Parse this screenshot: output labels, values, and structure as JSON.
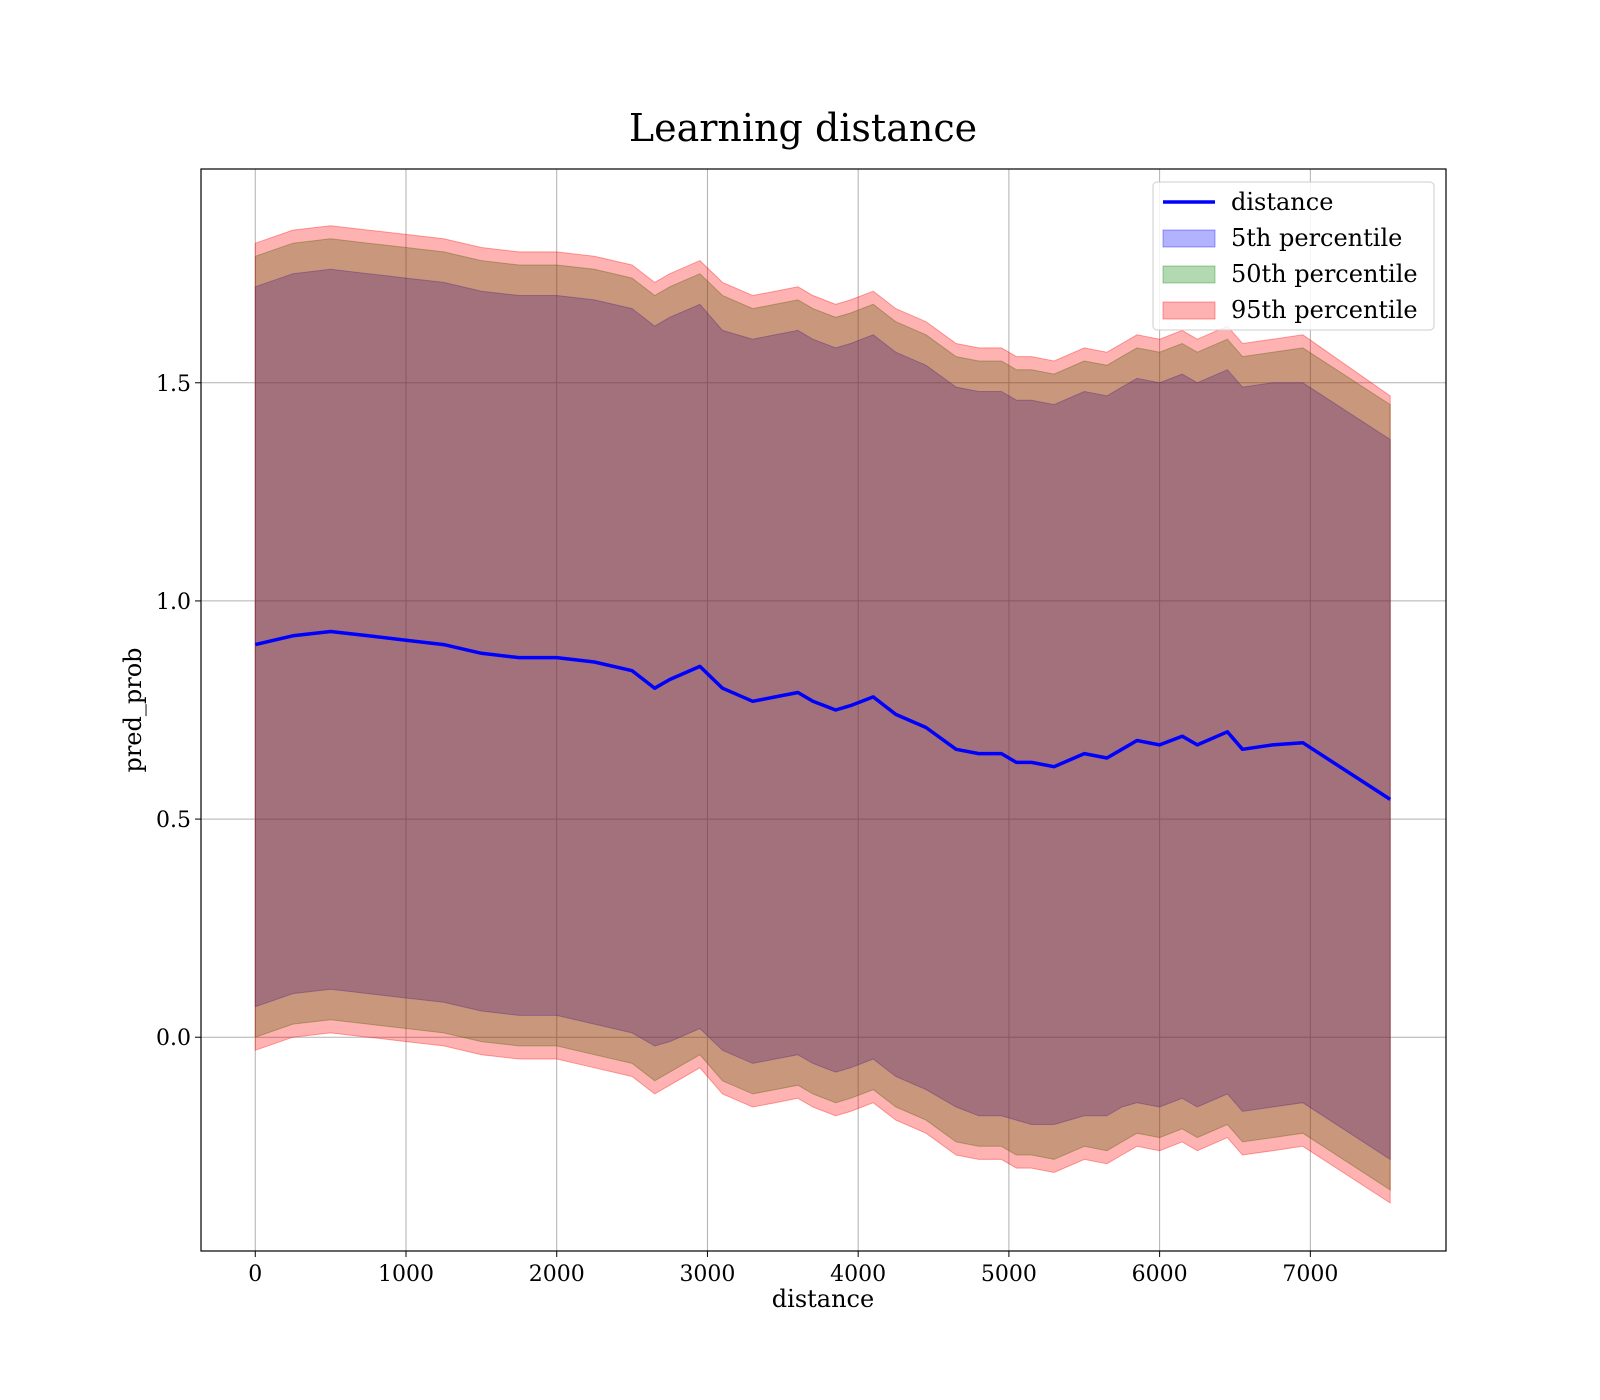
{
  "chart_data": {
    "type": "line",
    "title": "Learning distance",
    "xlabel": "distance",
    "ylabel": "pred_prob",
    "xlim": [
      -360,
      7900
    ],
    "ylim": [
      -0.49,
      1.99
    ],
    "xticks": [
      0,
      1000,
      2000,
      3000,
      4000,
      5000,
      6000,
      7000
    ],
    "yticks": [
      0.0,
      0.5,
      1.0,
      1.5
    ],
    "xtick_labels": [
      "0",
      "1000",
      "2000",
      "3000",
      "4000",
      "5000",
      "6000",
      "7000"
    ],
    "ytick_labels": [
      "0.0",
      "0.5",
      "1.0",
      "1.5"
    ],
    "grid": true,
    "legend_position": "top-right",
    "x": [
      0,
      250,
      500,
      750,
      1000,
      1250,
      1500,
      1750,
      2000,
      2250,
      2500,
      2650,
      2750,
      2950,
      3100,
      3300,
      3450,
      3600,
      3700,
      3850,
      3950,
      4100,
      4250,
      4450,
      4650,
      4800,
      4950,
      5050,
      5150,
      5300,
      5500,
      5650,
      5750,
      5850,
      6000,
      6150,
      6250,
      6450,
      6550,
      6750,
      6950,
      7530
    ],
    "series": [
      {
        "name": "distance",
        "kind": "line",
        "color": "#0000ff",
        "values": [
          0.9,
          0.92,
          0.93,
          0.92,
          0.91,
          0.9,
          0.88,
          0.87,
          0.87,
          0.86,
          0.84,
          0.8,
          0.82,
          0.85,
          0.8,
          0.77,
          0.78,
          0.79,
          0.77,
          0.75,
          0.76,
          0.78,
          0.74,
          0.71,
          0.66,
          0.65,
          0.65,
          0.63,
          0.63,
          0.62,
          0.65,
          0.64,
          0.66,
          0.68,
          0.67,
          0.69,
          0.67,
          0.7,
          0.66,
          0.67,
          0.675,
          0.545
        ]
      },
      {
        "name": "5th percentile",
        "kind": "band",
        "color": "#0000ff",
        "lower": [
          0.07,
          0.1,
          0.11,
          0.1,
          0.09,
          0.08,
          0.06,
          0.05,
          0.05,
          0.03,
          0.01,
          -0.02,
          -0.01,
          0.02,
          -0.03,
          -0.06,
          -0.05,
          -0.04,
          -0.06,
          -0.08,
          -0.07,
          -0.05,
          -0.09,
          -0.12,
          -0.16,
          -0.18,
          -0.18,
          -0.19,
          -0.2,
          -0.2,
          -0.18,
          -0.18,
          -0.16,
          -0.15,
          -0.16,
          -0.14,
          -0.16,
          -0.13,
          -0.17,
          -0.16,
          -0.15,
          -0.28
        ],
        "upper": [
          1.72,
          1.75,
          1.76,
          1.75,
          1.74,
          1.73,
          1.71,
          1.7,
          1.7,
          1.69,
          1.67,
          1.63,
          1.65,
          1.68,
          1.62,
          1.6,
          1.61,
          1.62,
          1.6,
          1.58,
          1.59,
          1.61,
          1.57,
          1.54,
          1.49,
          1.48,
          1.48,
          1.46,
          1.46,
          1.45,
          1.48,
          1.47,
          1.49,
          1.51,
          1.5,
          1.52,
          1.5,
          1.53,
          1.49,
          1.5,
          1.5,
          1.37
        ]
      },
      {
        "name": "50th percentile",
        "kind": "band",
        "color": "#008000",
        "lower": [
          0.0,
          0.03,
          0.04,
          0.03,
          0.02,
          0.01,
          -0.01,
          -0.02,
          -0.02,
          -0.04,
          -0.06,
          -0.1,
          -0.08,
          -0.04,
          -0.1,
          -0.13,
          -0.12,
          -0.11,
          -0.13,
          -0.15,
          -0.14,
          -0.12,
          -0.16,
          -0.19,
          -0.24,
          -0.25,
          -0.25,
          -0.27,
          -0.27,
          -0.28,
          -0.25,
          -0.26,
          -0.24,
          -0.22,
          -0.23,
          -0.21,
          -0.23,
          -0.2,
          -0.24,
          -0.23,
          -0.22,
          -0.35
        ],
        "upper": [
          1.79,
          1.82,
          1.83,
          1.82,
          1.81,
          1.8,
          1.78,
          1.77,
          1.77,
          1.76,
          1.74,
          1.7,
          1.72,
          1.75,
          1.7,
          1.67,
          1.68,
          1.69,
          1.67,
          1.65,
          1.66,
          1.68,
          1.64,
          1.61,
          1.56,
          1.55,
          1.55,
          1.53,
          1.53,
          1.52,
          1.55,
          1.54,
          1.56,
          1.58,
          1.57,
          1.59,
          1.57,
          1.6,
          1.56,
          1.57,
          1.58,
          1.45
        ]
      },
      {
        "name": "95th percentile",
        "kind": "band",
        "color": "#ff0000",
        "lower": [
          -0.03,
          0.0,
          0.01,
          0.0,
          -0.01,
          -0.02,
          -0.04,
          -0.05,
          -0.05,
          -0.07,
          -0.09,
          -0.13,
          -0.11,
          -0.07,
          -0.13,
          -0.16,
          -0.15,
          -0.14,
          -0.16,
          -0.18,
          -0.17,
          -0.15,
          -0.19,
          -0.22,
          -0.27,
          -0.28,
          -0.28,
          -0.3,
          -0.3,
          -0.31,
          -0.28,
          -0.29,
          -0.27,
          -0.25,
          -0.26,
          -0.24,
          -0.26,
          -0.23,
          -0.27,
          -0.26,
          -0.25,
          -0.38
        ],
        "upper": [
          1.82,
          1.85,
          1.86,
          1.85,
          1.84,
          1.83,
          1.81,
          1.8,
          1.8,
          1.79,
          1.77,
          1.73,
          1.75,
          1.78,
          1.73,
          1.7,
          1.71,
          1.72,
          1.7,
          1.68,
          1.69,
          1.71,
          1.67,
          1.64,
          1.59,
          1.58,
          1.58,
          1.56,
          1.56,
          1.55,
          1.58,
          1.57,
          1.59,
          1.61,
          1.6,
          1.62,
          1.6,
          1.63,
          1.59,
          1.6,
          1.61,
          1.47
        ]
      }
    ]
  }
}
